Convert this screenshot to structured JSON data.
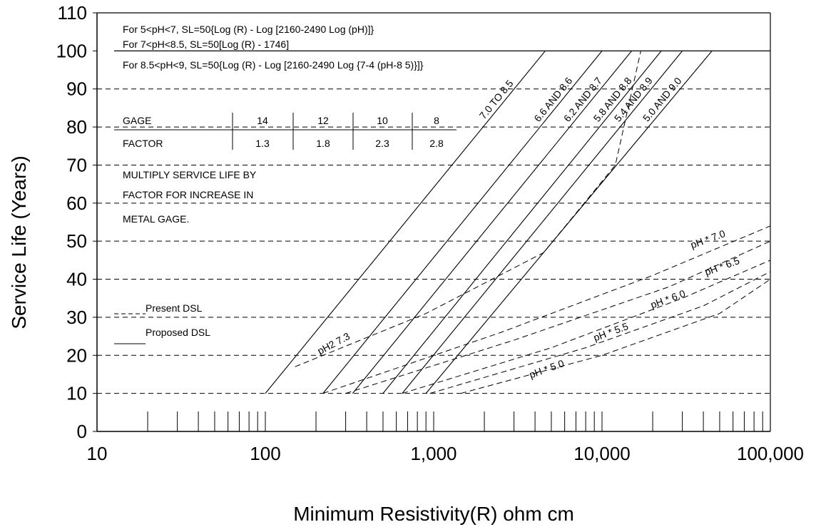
{
  "chart_data": {
    "type": "line",
    "x_scale": "log",
    "xlim": [
      10,
      100000
    ],
    "ylim": [
      0,
      110
    ],
    "xlabel": "Minimum Resistivity(R) ohm cm",
    "ylabel": "Service Life (Years)",
    "x_ticks": [
      {
        "value": 10,
        "label": "10"
      },
      {
        "value": 100,
        "label": "100"
      },
      {
        "value": 1000,
        "label": "1,000"
      },
      {
        "value": 10000,
        "label": "10,000"
      },
      {
        "value": 100000,
        "label": "100,000"
      }
    ],
    "y_ticks": [
      0,
      10,
      20,
      30,
      40,
      50,
      60,
      70,
      80,
      90,
      100,
      110
    ],
    "y_tick_labels": [
      "0",
      "10",
      "20",
      "30",
      "40",
      "50",
      "60",
      "70",
      "80",
      "90",
      "100",
      "110"
    ],
    "dashed_grid_y": [
      10,
      20,
      30,
      40,
      50,
      60,
      70,
      80,
      90
    ],
    "solid_line_y": 100,
    "equations": [
      "For 5<pH<7, SL=50{Log (R) - Log [2160-2490 Log (pH)]}",
      "For 7<pH<8.5, SL=50[Log (R) - 1746]",
      "For 8.5<pH<9, SL=50{Log (R) - Log [2160-2490 Log {7-4 (pH-8 5)}]}"
    ],
    "gage_table": {
      "row1_label": "GAGE",
      "row2_label": "FACTOR",
      "gages": [
        "14",
        "12",
        "10",
        "8"
      ],
      "factors": [
        "1.3",
        "1.8",
        "2.3",
        "2.8"
      ]
    },
    "note_lines": [
      "MULTIPLY SERVICE LIFE BY",
      "FACTOR FOR INCREASE IN",
      "METAL GAGE."
    ],
    "legend": {
      "present_label": "Present DSL",
      "proposed_label": "Proposed DSL"
    },
    "proposed_series": [
      {
        "name": "7.0 TO 8.5",
        "x": [
          100,
          4600
        ],
        "y": [
          10,
          100
        ]
      },
      {
        "name": "6.6 AND 8.6",
        "x": [
          220,
          10000
        ],
        "y": [
          10,
          100
        ]
      },
      {
        "name": "6.2 AND 8.7",
        "x": [
          330,
          15000
        ],
        "y": [
          10,
          100
        ]
      },
      {
        "name": "5.8 AND 8.8",
        "x": [
          500,
          22500
        ],
        "y": [
          10,
          100
        ]
      },
      {
        "name": "5.4 AND 8.9",
        "x": [
          650,
          30000
        ],
        "y": [
          10,
          100
        ]
      },
      {
        "name": "5.0 AND 9.0",
        "x": [
          900,
          45000
        ],
        "y": [
          10,
          100
        ]
      }
    ],
    "present_series": [
      {
        "name": "pH2 7.3",
        "x": [
          150,
          900,
          4500,
          12000,
          17000
        ],
        "y": [
          17,
          31,
          47,
          70,
          100
        ]
      },
      {
        "name": "pH * 7.0",
        "x": [
          220,
          2500,
          20000,
          100000
        ],
        "y": [
          10,
          26,
          41,
          54
        ]
      },
      {
        "name": "pH * 6.5",
        "x": [
          300,
          3000,
          25000,
          100000
        ],
        "y": [
          10,
          24,
          38,
          50
        ]
      },
      {
        "name": "pH * 6.0",
        "x": [
          650,
          5000,
          30000,
          100000
        ],
        "y": [
          10,
          22,
          35,
          45
        ]
      },
      {
        "name": "pH * 5.5",
        "x": [
          950,
          8000,
          40000,
          100000
        ],
        "y": [
          10,
          22,
          33,
          42
        ]
      },
      {
        "name": "pH * 5.0",
        "x": [
          1450,
          10000,
          50000,
          100000
        ],
        "y": [
          10,
          20,
          31,
          40
        ]
      }
    ]
  }
}
